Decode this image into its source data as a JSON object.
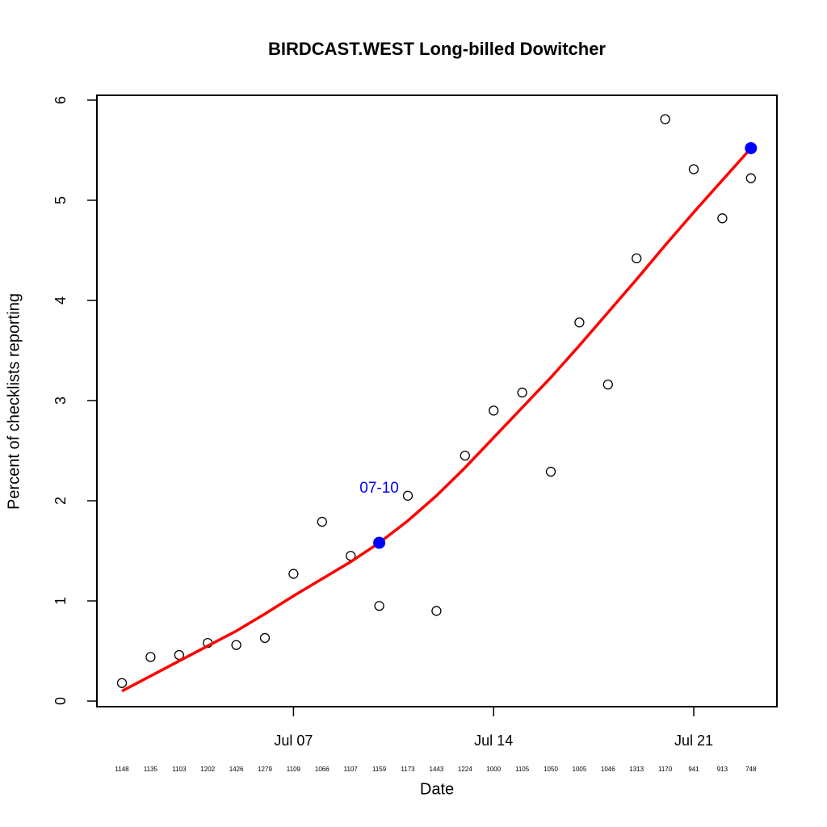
{
  "chart_data": {
    "type": "scatter",
    "title": "BIRDCAST.WEST Long-billed Dowitcher",
    "x_label": "Date",
    "y_label": "Percent of checklists reporting",
    "categories": [
      null,
      null,
      null,
      null,
      null,
      null,
      "Jul 07",
      null,
      null,
      null,
      null,
      null,
      null,
      "Jul 14",
      null,
      null,
      null,
      null,
      null,
      null,
      "Jul 21",
      null,
      null
    ],
    "sample_sizes": [
      1148,
      1135,
      1103,
      1202,
      1426,
      1279,
      1109,
      1066,
      1107,
      1159,
      1173,
      1443,
      1224,
      1000,
      1105,
      1050,
      1005,
      1046,
      1313,
      1170,
      941,
      913,
      748
    ],
    "series": [
      {
        "color": "#000000",
        "values": [
          0.18,
          0.44,
          0.46,
          0.58,
          0.56,
          0.63,
          1.27,
          1.79,
          1.45,
          0.95,
          2.05,
          0.9,
          2.45,
          2.9,
          3.08,
          2.29,
          3.78,
          3.16,
          4.42,
          5.81,
          5.31,
          4.82,
          5.22
        ]
      },
      {
        "color": "#ff0000",
        "values": [
          0.1,
          0.25,
          0.4,
          0.55,
          0.7,
          0.87,
          1.05,
          1.22,
          1.39,
          1.58,
          1.8,
          2.05,
          2.33,
          2.63,
          2.93,
          3.23,
          3.55,
          3.88,
          4.21,
          4.55,
          4.88,
          5.2,
          5.52
        ]
      },
      {
        "color": "#0000ff",
        "values": [
          null,
          null,
          null,
          null,
          null,
          null,
          null,
          null,
          null,
          1.58,
          null,
          null,
          null,
          null,
          null,
          null,
          null,
          null,
          null,
          null,
          null,
          null,
          5.52
        ]
      }
    ],
    "annotation": {
      "text": "07-10",
      "index": 9,
      "color": "#0000ff"
    },
    "ylim": [
      -0.056,
      6.048
    ],
    "yticks": [
      0,
      1,
      2,
      3,
      4,
      5,
      6
    ]
  }
}
